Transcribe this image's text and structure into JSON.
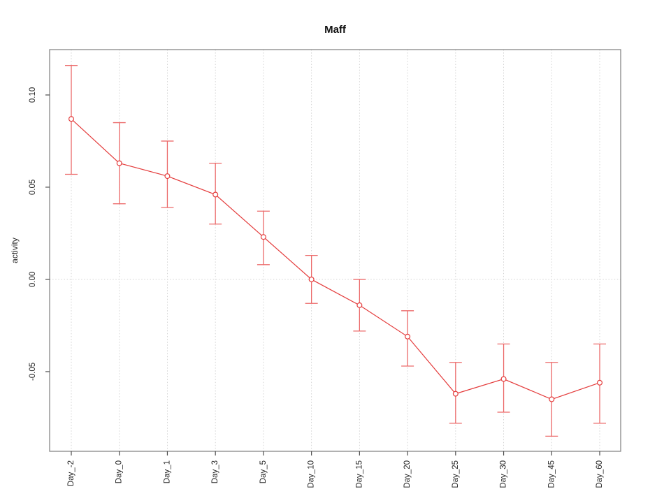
{
  "chart_data": {
    "type": "line",
    "title": "Maff",
    "xlabel": "",
    "ylabel": "activity",
    "categories": [
      "Day_-2",
      "Day_0",
      "Day_1",
      "Day_3",
      "Day_5",
      "Day_10",
      "Day_15",
      "Day_20",
      "Day_25",
      "Day_30",
      "Day_45",
      "Day_60"
    ],
    "values": [
      0.087,
      0.063,
      0.056,
      0.046,
      0.023,
      0.0,
      -0.014,
      -0.031,
      -0.062,
      -0.054,
      -0.065,
      -0.056
    ],
    "error_upper": [
      0.116,
      0.085,
      0.075,
      0.063,
      0.037,
      0.013,
      0.0,
      -0.017,
      -0.045,
      -0.035,
      -0.045,
      -0.035
    ],
    "error_lower": [
      0.057,
      0.041,
      0.039,
      0.03,
      0.008,
      -0.013,
      -0.028,
      -0.047,
      -0.078,
      -0.072,
      -0.085,
      -0.078
    ],
    "ylim": [
      -0.0932,
      0.1246
    ],
    "yticks": [
      {
        "value": -0.05,
        "label": "-0.05"
      },
      {
        "value": 0.0,
        "label": "0.00"
      },
      {
        "value": 0.05,
        "label": "0.05"
      },
      {
        "value": 0.1,
        "label": "0.10"
      }
    ],
    "grid": {
      "vertical": "dotted line at each category",
      "horizontal_at_value": 0,
      "style": "dotted"
    },
    "marker": "open-circle",
    "legend": "none",
    "colors": {
      "series": "#e43c3c",
      "error_bar": "#ec6a6a",
      "gridline": "#cfcfcf",
      "box": "#878787",
      "tick": "#4d4d4d",
      "text": "#262626"
    }
  }
}
